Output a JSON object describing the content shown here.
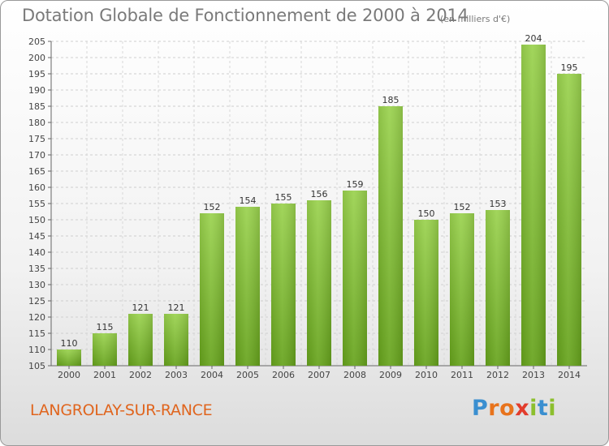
{
  "chart_data": {
    "type": "bar",
    "title": "Dotation Globale de Fonctionnement de 2000 à 2014",
    "subtitle": "(en milliers d'€)",
    "xlabel": "",
    "ylabel": "",
    "categories": [
      "2000",
      "2001",
      "2002",
      "2003",
      "2004",
      "2005",
      "2006",
      "2007",
      "2008",
      "2009",
      "2010",
      "2011",
      "2012",
      "2013",
      "2014"
    ],
    "values": [
      110,
      115,
      121,
      121,
      152,
      154,
      155,
      156,
      159,
      185,
      150,
      152,
      153,
      204,
      195
    ],
    "ylim": [
      105,
      205
    ],
    "yticks": [
      "105",
      "110",
      "115",
      "120",
      "125",
      "130",
      "135",
      "140",
      "145",
      "150",
      "155",
      "160",
      "165",
      "170",
      "175",
      "180",
      "185",
      "190",
      "195",
      "200",
      "205"
    ],
    "grid": true,
    "legend": "none",
    "bar_color": "#7fc034"
  },
  "footer": {
    "town": "LANGROLAY-SUR-RANCE",
    "logo_letters": [
      "P",
      "r",
      "o",
      "x",
      "i",
      "t",
      "i"
    ],
    "logo_colors": [
      "#3a8fd0",
      "#e8731c",
      "#e8731c",
      "#e23c2c",
      "#8cbf2e",
      "#3a8fd0",
      "#8cbf2e"
    ]
  }
}
